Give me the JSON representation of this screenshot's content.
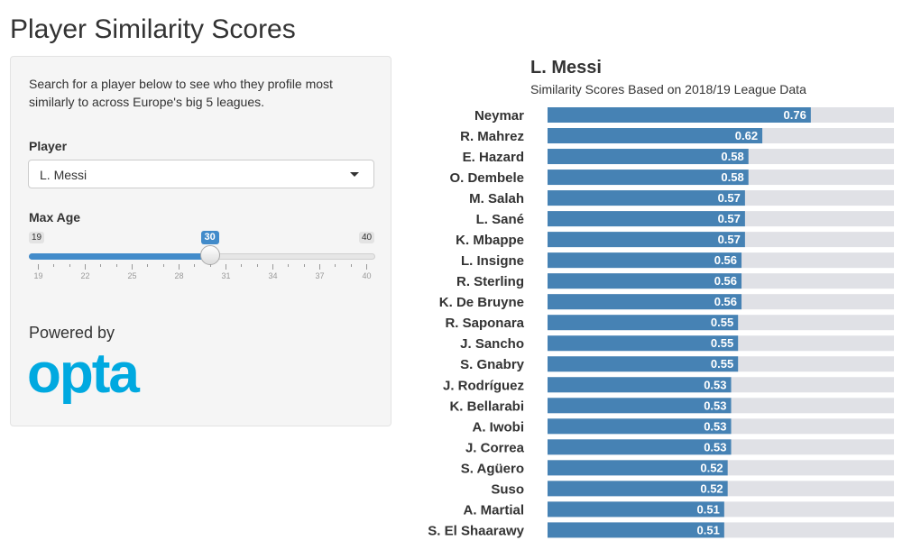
{
  "page": {
    "title": "Player Similarity Scores"
  },
  "sidebar": {
    "intro_line1": "Search for a player below to see who they profile most",
    "intro_line2": "similarly to across Europe's big 5 leagues.",
    "player_label": "Player",
    "player_value": "L. Messi",
    "max_age_label": "Max Age",
    "slider": {
      "min": 19,
      "max": 40,
      "value": 30,
      "min_label": "19",
      "max_label": "40",
      "value_label": "30",
      "ticks": [
        "19",
        "22",
        "25",
        "28",
        "31",
        "34",
        "37",
        "40"
      ]
    },
    "powered_by": "Powered by",
    "logo_text": "opta",
    "logo_color": "#00a9e0"
  },
  "chart_data": {
    "type": "bar",
    "orientation": "horizontal",
    "title": "L. Messi",
    "subtitle": "Similarity Scores Based on 2018/19 League Data",
    "xlim": [
      0,
      1
    ],
    "bar_color": "#4682b4",
    "track_color": "#e0e1e6",
    "categories": [
      "Neymar",
      "R. Mahrez",
      "E. Hazard",
      "O. Dembele",
      "M. Salah",
      "L. Sané",
      "K. Mbappe",
      "L. Insigne",
      "R. Sterling",
      "K. De Bruyne",
      "R. Saponara",
      "J. Sancho",
      "S. Gnabry",
      "J. Rodríguez",
      "K. Bellarabi",
      "A. Iwobi",
      "J. Correa",
      "S. Agüero",
      "Suso",
      "A. Martial",
      "S. El Shaarawy"
    ],
    "values": [
      0.76,
      0.62,
      0.58,
      0.58,
      0.57,
      0.57,
      0.57,
      0.56,
      0.56,
      0.56,
      0.55,
      0.55,
      0.55,
      0.53,
      0.53,
      0.53,
      0.53,
      0.52,
      0.52,
      0.51,
      0.51
    ],
    "value_labels": [
      "0.76",
      "0.62",
      "0.58",
      "0.58",
      "0.57",
      "0.57",
      "0.57",
      "0.56",
      "0.56",
      "0.56",
      "0.55",
      "0.55",
      "0.55",
      "0.53",
      "0.53",
      "0.53",
      "0.53",
      "0.52",
      "0.52",
      "0.51",
      "0.51"
    ]
  }
}
